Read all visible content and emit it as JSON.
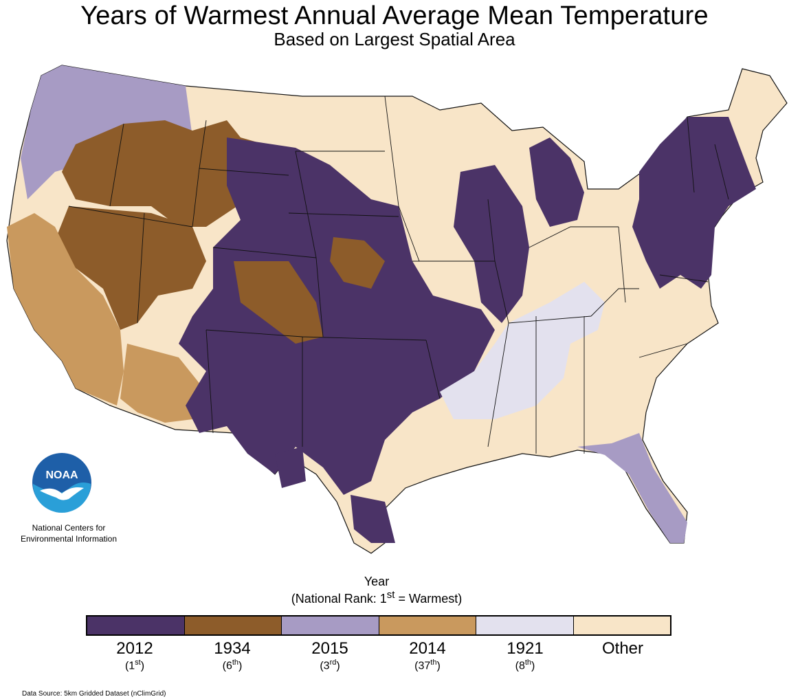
{
  "title": "Years of Warmest Annual Average Mean Temperature",
  "subtitle": "Based on Largest Spatial Area",
  "org": {
    "line1": "National Centers for",
    "line2": "Environmental Information",
    "logo_text": "NOAA"
  },
  "legend": {
    "title_line1": "Year",
    "title_line2_prefix": "(National Rank: 1",
    "title_line2_sup": "st",
    "title_line2_suffix": " = Warmest)",
    "items": [
      {
        "year": "2012",
        "rank_num": "1",
        "rank_sup": "st",
        "color": "#4b3367"
      },
      {
        "year": "1934",
        "rank_num": "6",
        "rank_sup": "th",
        "color": "#8d5c2a"
      },
      {
        "year": "2015",
        "rank_num": "3",
        "rank_sup": "rd",
        "color": "#a79bc4"
      },
      {
        "year": "2014",
        "rank_num": "37",
        "rank_sup": "th",
        "color": "#c9995e"
      },
      {
        "year": "1921",
        "rank_num": "8",
        "rank_sup": "th",
        "color": "#e3e1ee"
      },
      {
        "year": "Other",
        "rank_num": "",
        "rank_sup": "",
        "color": "#f8e5c8"
      }
    ]
  },
  "source": "Data Source: 5km Gridded Dataset (nClimGrid)"
}
